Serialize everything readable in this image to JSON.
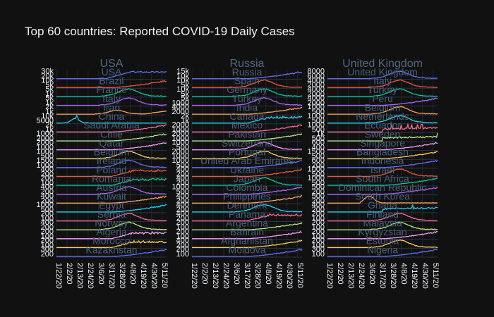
{
  "chart_data": {
    "type": "line",
    "title": "Top 60 countries: Reported COVID-19 Daily Cases",
    "x_ticks": [
      "1/22/20",
      "2/2/20",
      "2/13/20",
      "2/24/20",
      "3/6/20",
      "3/17/20",
      "3/28/20",
      "4/8/20",
      "4/19/20",
      "4/30/20",
      "5/11/20"
    ],
    "x_range": [
      "2020-01-22",
      "2020-05-17"
    ],
    "grid": true,
    "colors": {
      "background": "#111111",
      "label": "#506784",
      "series": [
        "#636efa",
        "#EF553B",
        "#00cc96",
        "#ab63fa",
        "#FFA15A",
        "#19d3f3",
        "#FF6692",
        "#B6E880",
        "#FF97FF",
        "#FECB52"
      ]
    },
    "columns": [
      {
        "title": "USA",
        "panels": [
          {
            "country": "USA",
            "ticks": [
              "20k",
              "30k"
            ],
            "peak": 32000,
            "shape": "usa"
          },
          {
            "country": "Brazil",
            "ticks": [
              "5k",
              "10k"
            ],
            "peak": 11000,
            "shape": "rise"
          },
          {
            "country": "France",
            "ticks": [
              "1k",
              "5k"
            ],
            "peak": 7000,
            "shape": "peak"
          },
          {
            "country": "Italy",
            "ticks": [
              "1k",
              "5k"
            ],
            "peak": 6500,
            "shape": "peak"
          },
          {
            "country": "Iran",
            "ticks": [
              "1k",
              "2k"
            ],
            "peak": 3000,
            "shape": "double"
          },
          {
            "country": "China",
            "ticks": [
              "5000",
              "10k"
            ],
            "peak": 15000,
            "shape": "china"
          },
          {
            "country": "Saudi Arabia",
            "ticks": [
              "1k",
              "2k"
            ],
            "peak": 2500,
            "shape": "rise"
          },
          {
            "country": "Chile",
            "ticks": [
              "2000",
              "1000"
            ],
            "peak": 2700,
            "shape": "rise"
          },
          {
            "country": "Qatar",
            "ticks": [
              "1000",
              "2000"
            ],
            "peak": 1800,
            "shape": "rise"
          },
          {
            "country": "Belgium",
            "ticks": [
              "500",
              "1000"
            ],
            "peak": 1600,
            "shape": "peak"
          },
          {
            "country": "Ireland",
            "ticks": [
              "1000",
              "1500"
            ],
            "peak": 1500,
            "shape": "peak"
          },
          {
            "country": "Poland",
            "ticks": [
              "200",
              "400"
            ],
            "peak": 600,
            "shape": "plateau"
          },
          {
            "country": "Romania",
            "ticks": [
              "100",
              "200"
            ],
            "peak": 500,
            "shape": "plateau"
          },
          {
            "country": "Austria",
            "ticks": [
              "200",
              "400"
            ],
            "peak": 1000,
            "shape": "peak"
          },
          {
            "country": "Kuwait",
            "ticks": [
              "200",
              "400"
            ],
            "peak": 1000,
            "shape": "rise"
          },
          {
            "country": "Egypt",
            "ticks": [
              "500",
              "1000"
            ],
            "peak": 500,
            "shape": "rise"
          },
          {
            "country": "Serbia",
            "ticks": [
              "100",
              "200"
            ],
            "peak": 400,
            "shape": "peak"
          },
          {
            "country": "Norway",
            "ticks": [
              "200",
              "400"
            ],
            "peak": 400,
            "shape": "peak"
          },
          {
            "country": "Algeria",
            "ticks": [
              "100",
              "200"
            ],
            "peak": 200,
            "shape": "plateau"
          },
          {
            "country": "Morocco",
            "ticks": [
              "100",
              "200"
            ],
            "peak": 280,
            "shape": "plateau"
          },
          {
            "country": "Kazakhstan",
            "ticks": [
              "200",
              "300"
            ],
            "peak": 300,
            "shape": "rise"
          }
        ]
      },
      {
        "title": "Russia",
        "panels": [
          {
            "country": "Russia",
            "ticks": [
              "10k",
              "15k"
            ],
            "peak": 11500,
            "shape": "rise"
          },
          {
            "country": "Spain",
            "ticks": [
              "5k",
              "10k"
            ],
            "peak": 9000,
            "shape": "peak"
          },
          {
            "country": "Germany",
            "ticks": [
              "5k",
              "10k"
            ],
            "peak": 6500,
            "shape": "peak"
          },
          {
            "country": "Turkey",
            "ticks": [
              "1000",
              "5k"
            ],
            "peak": 5000,
            "shape": "peak"
          },
          {
            "country": "India",
            "ticks": [
              "2000",
              "4000"
            ],
            "peak": 4500,
            "shape": "rise"
          },
          {
            "country": "Canada",
            "ticks": [
              "1k",
              "2k"
            ],
            "peak": 2000,
            "shape": "plateau"
          },
          {
            "country": "Mexico",
            "ticks": [
              "1000",
              "2000"
            ],
            "peak": 2100,
            "shape": "rise"
          },
          {
            "country": "Pakistan",
            "ticks": [
              "1000",
              "2000"
            ],
            "peak": 2000,
            "shape": "rise"
          },
          {
            "country": "Switzerland",
            "ticks": [
              "500",
              "1000"
            ],
            "peak": 1400,
            "shape": "peak"
          },
          {
            "country": "Portugal",
            "ticks": [
              "1000",
              "2000"
            ],
            "peak": 1500,
            "shape": "peak"
          },
          {
            "country": "United Arab Emirates",
            "ticks": [
              "500",
              "1000"
            ],
            "peak": 900,
            "shape": "rise"
          },
          {
            "country": "Ukraine",
            "ticks": [
              "200",
              "400"
            ],
            "peak": 600,
            "shape": "rise"
          },
          {
            "country": "Japan",
            "ticks": [
              "200",
              "400"
            ],
            "peak": 700,
            "shape": "peak"
          },
          {
            "country": "Colombia",
            "ticks": [
              "500",
              "1000"
            ],
            "peak": 600,
            "shape": "rise"
          },
          {
            "country": "Philippines",
            "ticks": [
              "200",
              "400"
            ],
            "peak": 500,
            "shape": "rise"
          },
          {
            "country": "Denmark",
            "ticks": [
              "200",
              "400"
            ],
            "peak": 400,
            "shape": "peak"
          },
          {
            "country": "Panama",
            "ticks": [
              "200",
              "400"
            ],
            "peak": 300,
            "shape": "plateau"
          },
          {
            "country": "Argentina",
            "ticks": [
              "100",
              "200"
            ],
            "peak": 300,
            "shape": "rise"
          },
          {
            "country": "Bahrain",
            "ticks": [
              "100",
              "200"
            ],
            "peak": 250,
            "shape": "rise"
          },
          {
            "country": "Afghanistan",
            "ticks": [
              "200",
              "400"
            ],
            "peak": 400,
            "shape": "rise"
          },
          {
            "country": "Moldova",
            "ticks": [
              "100",
              "200"
            ],
            "peak": 200,
            "shape": "rise"
          }
        ]
      },
      {
        "title": "United Kingdom",
        "panels": [
          {
            "country": "United Kingdom",
            "ticks": [
              "6000",
              "8000"
            ],
            "peak": 8700,
            "shape": "peak"
          },
          {
            "country": "Italy",
            "ticks": [
              "2000",
              "4000"
            ],
            "peak": 6500,
            "shape": "peak"
          },
          {
            "country": "Turkey",
            "ticks": [
              "2000",
              "4000"
            ],
            "peak": 5000,
            "shape": "peak"
          },
          {
            "country": "Peru",
            "ticks": [
              "2000",
              "4000"
            ],
            "peak": 4000,
            "shape": "rise"
          },
          {
            "country": "Belgium",
            "ticks": [
              "500",
              "1000"
            ],
            "peak": 1600,
            "shape": "peak"
          },
          {
            "country": "Netherlands",
            "ticks": [
              "500",
              "1000"
            ],
            "peak": 1300,
            "shape": "peak"
          },
          {
            "country": "Ecuador",
            "ticks": [
              "500",
              "1000"
            ],
            "peak": 1200,
            "shape": "spiky"
          },
          {
            "country": "Sweden",
            "ticks": [
              "500",
              "1k"
            ],
            "peak": 1000,
            "shape": "spiky"
          },
          {
            "country": "Singapore",
            "ticks": [
              "400",
              "600"
            ],
            "peak": 1400,
            "shape": "rise"
          },
          {
            "country": "Bangladesh",
            "ticks": [
              "500",
              "1500"
            ],
            "peak": 1500,
            "shape": "rise"
          },
          {
            "country": "Indonesia",
            "ticks": [
              "200",
              "600"
            ],
            "peak": 600,
            "shape": "rise"
          },
          {
            "country": "Israel",
            "ticks": [
              "500",
              "1000"
            ],
            "peak": 800,
            "shape": "peak"
          },
          {
            "country": "South Africa",
            "ticks": [
              "500",
              "1000"
            ],
            "peak": 700,
            "shape": "rise"
          },
          {
            "country": "Dominican Republic",
            "ticks": [
              "200",
              "500"
            ],
            "peak": 500,
            "shape": "rise"
          },
          {
            "country": "South Korea",
            "ticks": [
              "200",
              "500"
            ],
            "peak": 900,
            "shape": "early"
          },
          {
            "country": "Ghana",
            "ticks": [
              "200",
              "400"
            ],
            "peak": 400,
            "shape": "spiky"
          },
          {
            "country": "Finland",
            "ticks": [
              "100",
              "200"
            ],
            "peak": 250,
            "shape": "peak"
          },
          {
            "country": "Malaysia",
            "ticks": [
              "100",
              "200"
            ],
            "peak": 250,
            "shape": "peak"
          },
          {
            "country": "Kyrgyzstan",
            "ticks": [
              "100",
              "200"
            ],
            "peak": 150,
            "shape": "rise"
          },
          {
            "country": "Estonia",
            "ticks": [
              "100",
              "200"
            ],
            "peak": 150,
            "shape": "peak"
          },
          {
            "country": "Nigeria",
            "ticks": [
              "100",
              "300"
            ],
            "peak": 350,
            "shape": "rise"
          }
        ]
      }
    ]
  }
}
